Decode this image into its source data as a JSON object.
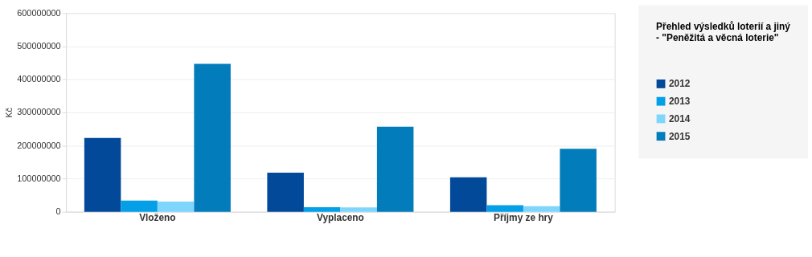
{
  "chart_data": {
    "type": "bar",
    "title": "Přehled výsledků loterií a jiný\n- \"Peněžitá a věcná loterie\"",
    "ylabel": "Kč",
    "categories": [
      "Vloženo",
      "Vyplaceno",
      "Příjmy ze hry"
    ],
    "series": [
      {
        "name": "2012",
        "color": "#03499a",
        "values": [
          223000000,
          118000000,
          104000000
        ]
      },
      {
        "name": "2013",
        "color": "#049fe6",
        "values": [
          34000000,
          14000000,
          20000000
        ]
      },
      {
        "name": "2014",
        "color": "#7fd6fd",
        "values": [
          31000000,
          13000000,
          17000000
        ]
      },
      {
        "name": "2015",
        "color": "#027cba",
        "values": [
          447000000,
          257000000,
          190000000
        ]
      }
    ],
    "ylim": [
      0,
      600000000
    ],
    "yticks": [
      0,
      100000000,
      200000000,
      300000000,
      400000000,
      500000000,
      600000000
    ],
    "grid": "y",
    "legend": "right"
  }
}
